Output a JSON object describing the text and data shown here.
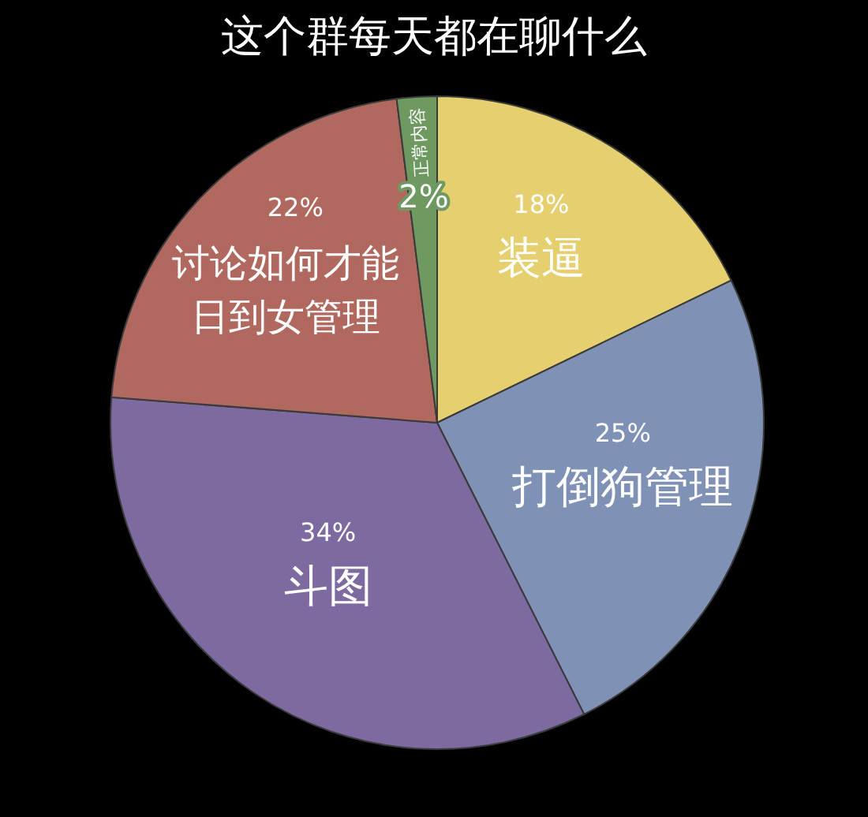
{
  "chart_data": {
    "type": "pie",
    "title": "这个群每天都在聊什么",
    "categories": [
      "装逼",
      "打倒狗管理",
      "斗图",
      "讨论如何才能日到女管理",
      "正常内容"
    ],
    "values": [
      18,
      25,
      34,
      22,
      2
    ],
    "colors": [
      "#e6cf6e",
      "#7f92b6",
      "#7d6aa1",
      "#b0685f",
      "#6e9a62"
    ],
    "value_labels": [
      "18%",
      "25%",
      "34%",
      "22%",
      "2%"
    ]
  }
}
